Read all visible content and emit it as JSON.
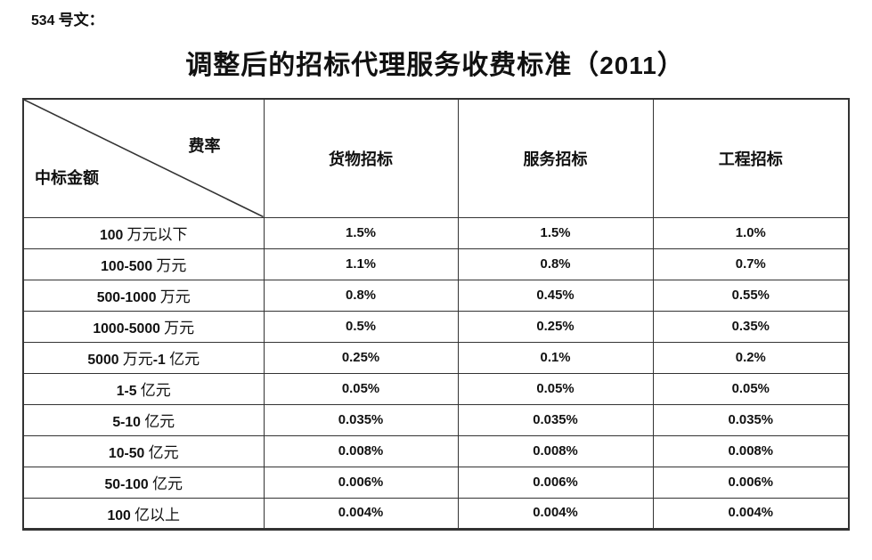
{
  "page": {
    "doc_label": "534 号文：",
    "title": "调整后的招标代理服务收费标准（2011）"
  },
  "table": {
    "corner": {
      "top_right_label": "费率",
      "bottom_left_label": "中标金额"
    },
    "columns": [
      "货物招标",
      "服务招标",
      "工程招标"
    ],
    "rows": [
      {
        "label": "100 万元以下",
        "values": [
          "1.5%",
          "1.5%",
          "1.0%"
        ]
      },
      {
        "label": "100-500 万元",
        "values": [
          "1.1%",
          "0.8%",
          "0.7%"
        ]
      },
      {
        "label": "500-1000 万元",
        "values": [
          "0.8%",
          "0.45%",
          "0.55%"
        ]
      },
      {
        "label": "1000-5000 万元",
        "values": [
          "0.5%",
          "0.25%",
          "0.35%"
        ]
      },
      {
        "label": "5000 万元-1 亿元",
        "values": [
          "0.25%",
          "0.1%",
          "0.2%"
        ]
      },
      {
        "label": "1-5 亿元",
        "values": [
          "0.05%",
          "0.05%",
          "0.05%"
        ]
      },
      {
        "label": "5-10 亿元",
        "values": [
          "0.035%",
          "0.035%",
          "0.035%"
        ]
      },
      {
        "label": "10-50 亿元",
        "values": [
          "0.008%",
          "0.008%",
          "0.008%"
        ]
      },
      {
        "label": "50-100 亿元",
        "values": [
          "0.006%",
          "0.006%",
          "0.006%"
        ]
      },
      {
        "label": "100 亿以上",
        "values": [
          "0.004%",
          "0.004%",
          "0.004%"
        ]
      }
    ]
  },
  "colors": {
    "text": "#111111",
    "border": "#333333",
    "background": "#ffffff"
  }
}
